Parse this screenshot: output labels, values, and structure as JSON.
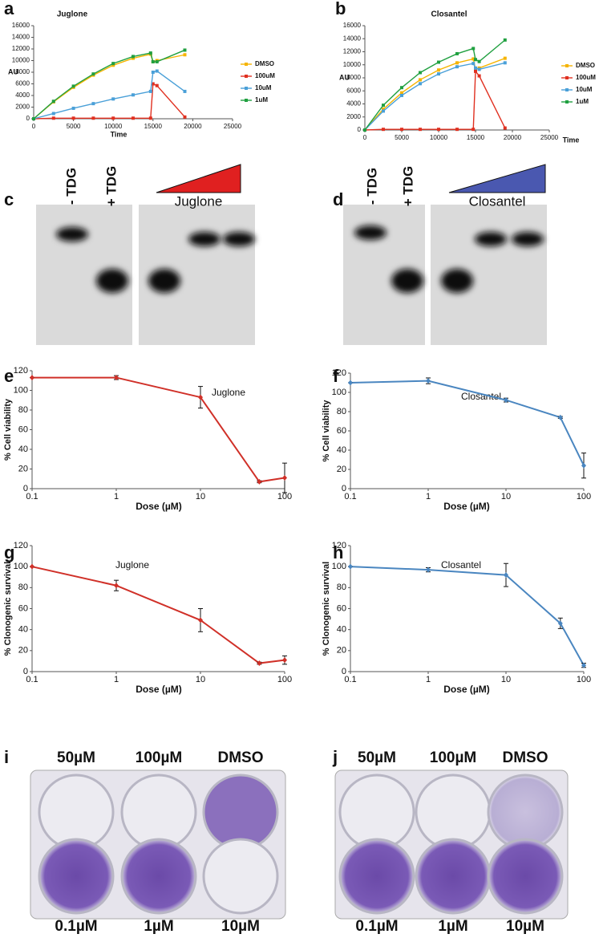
{
  "chart_data": [
    {
      "type": "line",
      "panel": "a",
      "title": "Juglone",
      "xlabel": "Time",
      "ylabel": "AU",
      "x": [
        0,
        2500,
        5000,
        7500,
        10000,
        12500,
        14700,
        15000,
        15500,
        19000
      ],
      "series": [
        {
          "name": "DMSO",
          "color": "#f5b400",
          "values": [
            0,
            2900,
            5400,
            7500,
            9200,
            10400,
            11100,
            9800,
            10000,
            11000
          ]
        },
        {
          "name": "100uM",
          "color": "#e03020",
          "values": [
            0,
            100,
            100,
            100,
            100,
            100,
            100,
            6000,
            5700,
            300
          ]
        },
        {
          "name": "10uM",
          "color": "#4aa0d8",
          "values": [
            0,
            900,
            1800,
            2600,
            3400,
            4100,
            4700,
            8000,
            8200,
            4700
          ]
        },
        {
          "name": "1uM",
          "color": "#20a040",
          "values": [
            0,
            3000,
            5600,
            7700,
            9500,
            10700,
            11300,
            9800,
            9800,
            11800
          ]
        }
      ],
      "xlim": [
        0,
        25000
      ],
      "xticks": [
        0,
        5000,
        10000,
        15000,
        20000,
        25000
      ],
      "ylim": [
        0,
        16000
      ],
      "yticks": [
        0,
        2000,
        4000,
        6000,
        8000,
        10000,
        12000,
        14000,
        16000
      ],
      "legend": "right"
    },
    {
      "type": "line",
      "panel": "b",
      "title": "Closantel",
      "xlabel": "Time",
      "ylabel": "AU",
      "x": [
        0,
        2500,
        5000,
        7500,
        10000,
        12500,
        14700,
        15000,
        15500,
        19000
      ],
      "series": [
        {
          "name": "DMSO",
          "color": "#f5b400",
          "values": [
            0,
            3200,
            5700,
            7700,
            9200,
            10300,
            10900,
            9300,
            9500,
            11000
          ]
        },
        {
          "name": "100uM",
          "color": "#e03020",
          "values": [
            0,
            100,
            100,
            100,
            100,
            100,
            100,
            9000,
            8300,
            300
          ]
        },
        {
          "name": "10uM",
          "color": "#4aa0d8",
          "values": [
            0,
            2900,
            5300,
            7100,
            8600,
            9700,
            10200,
            9500,
            9300,
            10300
          ]
        },
        {
          "name": "1uM",
          "color": "#20a040",
          "values": [
            0,
            3800,
            6500,
            8800,
            10400,
            11700,
            12500,
            10800,
            10500,
            13800
          ]
        }
      ],
      "xlim": [
        0,
        25000
      ],
      "xticks": [
        0,
        5000,
        10000,
        15000,
        20000,
        25000
      ],
      "ylim": [
        0,
        16000
      ],
      "yticks": [
        0,
        2000,
        4000,
        6000,
        8000,
        10000,
        12000,
        14000,
        16000
      ],
      "legend": "right"
    },
    {
      "type": "errorline",
      "panel": "e",
      "annotation": "Juglone",
      "xlabel": "Dose (µM)",
      "ylabel": "% Cell viability",
      "x": [
        0.1,
        1,
        10,
        50,
        100
      ],
      "values": [
        113,
        113,
        93,
        7,
        11
      ],
      "errors": [
        0,
        2,
        11,
        1,
        15
      ],
      "color": "#d03028",
      "xlim": [
        0.1,
        100
      ],
      "xticks": [
        0.1,
        1,
        10,
        100
      ],
      "log_x": true,
      "ylim": [
        0,
        120
      ],
      "yticks": [
        0,
        20,
        40,
        60,
        80,
        100,
        120
      ]
    },
    {
      "type": "errorline",
      "panel": "f",
      "annotation": "Closantel",
      "xlabel": "Dose (µM)",
      "ylabel": "% Cell viability",
      "x": [
        0.1,
        1,
        10,
        50,
        100
      ],
      "values": [
        110,
        112,
        92,
        74,
        24
      ],
      "errors": [
        0,
        3,
        2,
        1,
        13
      ],
      "color": "#4a86c0",
      "xlim": [
        0.1,
        100
      ],
      "xticks": [
        0.1,
        1,
        10,
        100
      ],
      "log_x": true,
      "ylim": [
        0,
        120
      ],
      "yticks": [
        0,
        20,
        40,
        60,
        80,
        100,
        120
      ]
    },
    {
      "type": "errorline",
      "panel": "g",
      "annotation": "Juglone",
      "xlabel": "Dose (µM)",
      "ylabel": "% Clonogenic survival",
      "x": [
        0.1,
        1,
        10,
        50,
        100
      ],
      "values": [
        100,
        82,
        49,
        8,
        11
      ],
      "errors": [
        0,
        5,
        11,
        1,
        4
      ],
      "color": "#d03028",
      "xlim": [
        0.1,
        100
      ],
      "xticks": [
        0.1,
        1,
        10,
        100
      ],
      "log_x": true,
      "ylim": [
        0,
        120
      ],
      "yticks": [
        0,
        20,
        40,
        60,
        80,
        100,
        120
      ]
    },
    {
      "type": "errorline",
      "panel": "h",
      "annotation": "Closantel",
      "xlabel": "Dose (µM)",
      "ylabel": "% Clonogenic survival",
      "x": [
        0.1,
        1,
        10,
        50,
        100
      ],
      "values": [
        100,
        97,
        92,
        46,
        6
      ],
      "errors": [
        0,
        2,
        11,
        5,
        2
      ],
      "color": "#4a86c0",
      "xlim": [
        0.1,
        100
      ],
      "xticks": [
        0.1,
        1,
        10,
        100
      ],
      "log_x": true,
      "ylim": [
        0,
        120
      ],
      "yticks": [
        0,
        20,
        40,
        60,
        80,
        100,
        120
      ]
    }
  ],
  "gels": [
    {
      "panel": "c",
      "lanes": [
        "- TDG",
        "+ TDG"
      ],
      "compound": "Juglone",
      "color": "#e02020"
    },
    {
      "panel": "d",
      "lanes": [
        "- TDG",
        "+ TDG"
      ],
      "compound": "Closantel",
      "color": "#4a58b0"
    }
  ],
  "plates": [
    {
      "panel": "i",
      "top": [
        "50µM",
        "100µM",
        "DMSO"
      ],
      "bottom": [
        "0.1µM",
        "1µM",
        "10µM"
      ]
    },
    {
      "panel": "j",
      "top": [
        "50µM",
        "100µM",
        "DMSO"
      ],
      "bottom": [
        "0.1µM",
        "1µM",
        "10µM"
      ]
    }
  ]
}
